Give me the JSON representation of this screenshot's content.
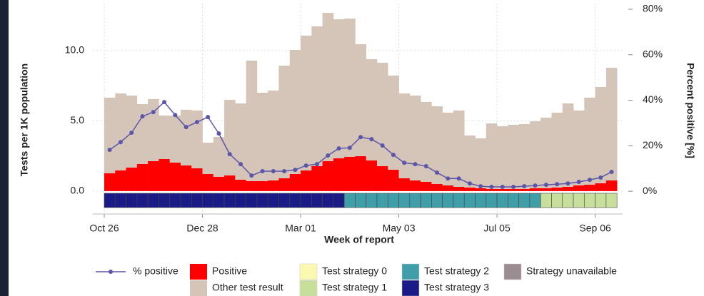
{
  "chart_data": {
    "type": "bar",
    "x_label": "Week of report",
    "y_label": "Tests per 1K population",
    "y2_label": "Percent positive [%]",
    "categories": [
      "Oct 26",
      null,
      null,
      null,
      null,
      null,
      null,
      null,
      null,
      "Dec 28",
      null,
      null,
      null,
      null,
      null,
      null,
      null,
      null,
      "Mar 01",
      null,
      null,
      null,
      null,
      null,
      null,
      null,
      null,
      "May 03",
      null,
      null,
      null,
      null,
      null,
      null,
      null,
      null,
      "Jul 05",
      null,
      null,
      null,
      null,
      null,
      null,
      null,
      null,
      "Sep 06",
      null
    ],
    "series": [
      {
        "name": "Positive",
        "color": "#ff0000",
        "values": [
          1.27,
          1.47,
          1.68,
          1.93,
          2.13,
          2.28,
          2.03,
          1.83,
          1.62,
          1.22,
          1.02,
          1.12,
          0.81,
          0.71,
          0.71,
          0.76,
          0.91,
          1.22,
          1.47,
          1.78,
          2.13,
          2.34,
          2.44,
          2.49,
          2.18,
          1.78,
          1.52,
          0.91,
          0.76,
          0.66,
          0.51,
          0.41,
          0.3,
          0.25,
          0.2,
          0.15,
          0.15,
          0.15,
          0.15,
          0.2,
          0.2,
          0.25,
          0.3,
          0.41,
          0.46,
          0.56,
          0.76
        ]
      },
      {
        "name": "Other test result",
        "color": "#d5c4b8",
        "values": [
          5.38,
          5.48,
          5.12,
          4.26,
          4.42,
          3.1,
          3.35,
          3.96,
          4.12,
          2.23,
          2.84,
          5.38,
          5.43,
          8.58,
          6.29,
          6.4,
          8.02,
          8.83,
          9.6,
          9.95,
          10.56,
          9.89,
          9.84,
          7.97,
          7.21,
          7.36,
          6.7,
          6.04,
          6.04,
          5.69,
          5.53,
          5.17,
          5.44,
          3.71,
          3.56,
          4.67,
          4.47,
          4.57,
          4.62,
          4.77,
          5.03,
          5.33,
          5.94,
          5.33,
          6.19,
          6.85,
          8.02
        ]
      },
      {
        "name": "% positive",
        "color": "#5c56a8",
        "axis": "y2",
        "values": [
          18.2,
          21.6,
          25.7,
          32.9,
          34.8,
          39.2,
          33.5,
          28.2,
          30.4,
          32.6,
          25.4,
          16.3,
          11.9,
          6.9,
          8.8,
          8.8,
          8.8,
          9.4,
          11.3,
          11.9,
          15.7,
          18.8,
          19.1,
          23.8,
          22.9,
          20.1,
          16.0,
          12.5,
          11.9,
          11.0,
          8.2,
          5.6,
          5.6,
          3.4,
          2.2,
          1.9,
          1.9,
          1.9,
          2.2,
          2.5,
          2.8,
          3.1,
          3.4,
          4.1,
          5.0,
          6.0,
          8.5
        ]
      }
    ],
    "strategy_legend": [
      {
        "name": "Test strategy 0",
        "color": "#fbf8b0"
      },
      {
        "name": "Test strategy 1",
        "color": "#c8df9c"
      },
      {
        "name": "Test strategy 2",
        "color": "#3f9ea7"
      },
      {
        "name": "Test strategy 3",
        "color": "#1b1b87"
      },
      {
        "name": "Strategy unavailable",
        "color": "#9a8c90"
      }
    ],
    "strategy": [
      3,
      3,
      3,
      3,
      3,
      3,
      3,
      3,
      3,
      3,
      3,
      3,
      3,
      3,
      3,
      3,
      3,
      3,
      3,
      3,
      3,
      3,
      2,
      2,
      2,
      2,
      2,
      2,
      2,
      2,
      2,
      2,
      2,
      2,
      2,
      2,
      2,
      2,
      2,
      2,
      1,
      1,
      1,
      1,
      1,
      1,
      1
    ],
    "ylim": [
      -1.63,
      13.35
    ],
    "yticks": [
      {
        "value": 0,
        "label": "0.0"
      },
      {
        "value": 5,
        "label": "5.0"
      },
      {
        "value": 10,
        "label": "10.0"
      }
    ],
    "y2lim": [
      -10,
      82.5
    ],
    "y2ticks": [
      {
        "value": 0,
        "label": "0%"
      },
      {
        "value": 20,
        "label": "20%"
      },
      {
        "value": 40,
        "label": "40%"
      },
      {
        "value": 60,
        "label": "60%"
      },
      {
        "value": 80,
        "label": "80%"
      }
    ],
    "grid": true
  }
}
